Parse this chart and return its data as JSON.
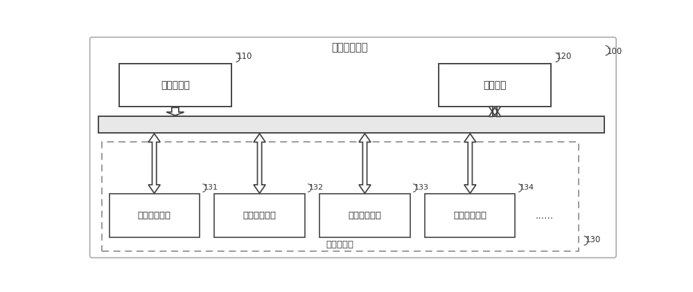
{
  "title": "任务处理系统",
  "bg_color": "#ffffff",
  "border_color": "#aaaaaa",
  "box_color": "#ffffff",
  "box_border": "#444444",
  "dashed_border": "#888888",
  "bus_fill": "#e8e8e8",
  "bus_border": "#444444",
  "arrow_color": "#444444",
  "label_110": "110",
  "label_120": "120",
  "label_130": "130",
  "label_131": "131",
  "label_132": "132",
  "label_133": "133",
  "label_134": "134",
  "label_100": "100",
  "text_scheduler": "任务调度器",
  "text_shared_mem": "共享内存",
  "text_proc1": "第一处理单元",
  "text_proc2": "第二处理单元",
  "text_proc3": "第三处理单元",
  "text_proc4": "第四处理单元",
  "text_ellipsis": "......",
  "text_proc_group": "处理单元组",
  "font_size_title": 10.5,
  "font_size_box": 10,
  "font_size_label": 8.5,
  "font_size_group": 9.5
}
